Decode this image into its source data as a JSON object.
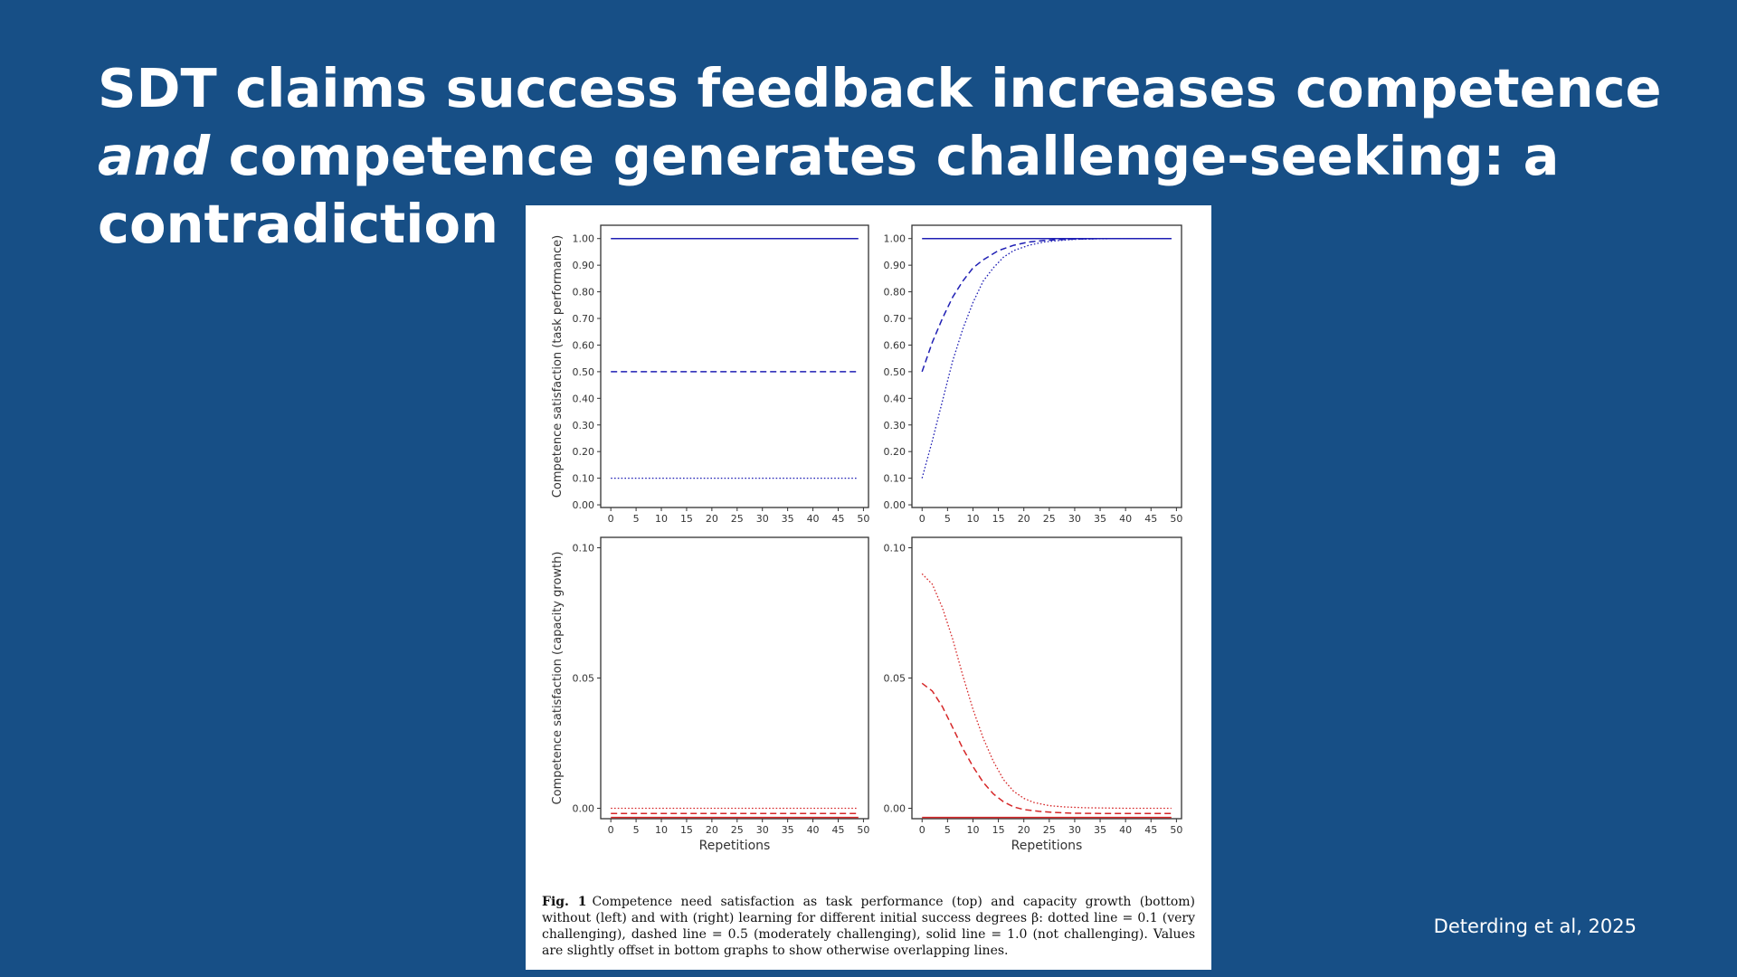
{
  "slide": {
    "title_part1": "SDT claims success feedback increases competence ",
    "title_emph": "and",
    "title_part2": " competence generates challenge-seeking: a contradiction",
    "citation": "Deterding et al, 2025"
  },
  "caption": {
    "label": "Fig. 1",
    "text": "Competence need satisfaction as task performance (top) and capacity growth (bottom) without (left) and with (right) learning for different initial success degrees β: dotted line = 0.1 (very challenging), dashed line = 0.5 (moderately challenging), solid line = 1.0 (not challenging). Values are slightly offset in bottom graphs to show otherwise overlapping lines."
  },
  "colors": {
    "background": "#174f86",
    "blue_series": "#1f1fb4",
    "red_series": "#d62728"
  },
  "chart_data": [
    {
      "type": "line",
      "panel": "top-left",
      "xlabel": "",
      "ylabel": "Competence satisfaction (task performance)",
      "xlim": [
        -2,
        51
      ],
      "ylim": [
        -0.01,
        1.05
      ],
      "xticks": [
        0,
        5,
        10,
        15,
        20,
        25,
        30,
        35,
        40,
        45,
        50
      ],
      "yticks": [
        0.0,
        0.1,
        0.2,
        0.3,
        0.4,
        0.5,
        0.6,
        0.7,
        0.8,
        0.9,
        1.0
      ],
      "ytick_labels": [
        "0.00",
        "0.10",
        "0.20",
        "0.30",
        "0.40",
        "0.50",
        "0.60",
        "0.70",
        "0.80",
        "0.90",
        "1.00"
      ],
      "color": "#1f1fb4",
      "series": [
        {
          "style": "solid",
          "x": [
            0,
            49
          ],
          "y": [
            1.0,
            1.0
          ]
        },
        {
          "style": "dashed",
          "x": [
            0,
            49
          ],
          "y": [
            0.5,
            0.5
          ]
        },
        {
          "style": "dotted",
          "x": [
            0,
            49
          ],
          "y": [
            0.1,
            0.1
          ]
        }
      ]
    },
    {
      "type": "line",
      "panel": "top-right",
      "xlabel": "",
      "ylabel": "",
      "xlim": [
        -2,
        51
      ],
      "ylim": [
        -0.01,
        1.05
      ],
      "xticks": [
        0,
        5,
        10,
        15,
        20,
        25,
        30,
        35,
        40,
        45,
        50
      ],
      "yticks": [
        0.0,
        0.1,
        0.2,
        0.3,
        0.4,
        0.5,
        0.6,
        0.7,
        0.8,
        0.9,
        1.0
      ],
      "ytick_labels": [
        "0.00",
        "0.10",
        "0.20",
        "0.30",
        "0.40",
        "0.50",
        "0.60",
        "0.70",
        "0.80",
        "0.90",
        "1.00"
      ],
      "color": "#1f1fb4",
      "series": [
        {
          "style": "solid",
          "x": [
            0,
            49
          ],
          "y": [
            1.0,
            1.0
          ]
        },
        {
          "style": "dashed",
          "x": [
            0,
            2,
            4,
            6,
            8,
            10,
            12,
            15,
            18,
            21,
            24,
            27,
            30,
            35,
            40,
            49
          ],
          "y": [
            0.5,
            0.61,
            0.7,
            0.78,
            0.84,
            0.89,
            0.92,
            0.955,
            0.975,
            0.987,
            0.993,
            0.996,
            0.998,
            1.0,
            1.0,
            1.0
          ]
        },
        {
          "style": "dotted",
          "x": [
            0,
            2,
            4,
            6,
            8,
            10,
            12,
            14,
            16,
            18,
            21,
            24,
            27,
            30,
            35,
            40,
            49
          ],
          "y": [
            0.1,
            0.24,
            0.39,
            0.54,
            0.66,
            0.76,
            0.84,
            0.89,
            0.93,
            0.955,
            0.975,
            0.987,
            0.993,
            0.997,
            0.999,
            1.0,
            1.0
          ]
        }
      ]
    },
    {
      "type": "line",
      "panel": "bottom-left",
      "xlabel": "Repetitions",
      "ylabel": "Competence satisfaction (capacity growth)",
      "xlim": [
        -2,
        51
      ],
      "ylim": [
        -0.004,
        0.104
      ],
      "xticks": [
        0,
        5,
        10,
        15,
        20,
        25,
        30,
        35,
        40,
        45,
        50
      ],
      "yticks": [
        0.0,
        0.05,
        0.1
      ],
      "ytick_labels": [
        "0.00",
        "0.05",
        "0.10"
      ],
      "color": "#d62728",
      "series": [
        {
          "style": "solid",
          "x": [
            0,
            49
          ],
          "y": [
            -0.0035,
            -0.0035
          ]
        },
        {
          "style": "dashed",
          "x": [
            0,
            49
          ],
          "y": [
            -0.002,
            -0.002
          ]
        },
        {
          "style": "dotted",
          "x": [
            0,
            49
          ],
          "y": [
            0.0,
            0.0
          ]
        }
      ]
    },
    {
      "type": "line",
      "panel": "bottom-right",
      "xlabel": "Repetitions",
      "ylabel": "",
      "xlim": [
        -2,
        51
      ],
      "ylim": [
        -0.004,
        0.104
      ],
      "xticks": [
        0,
        5,
        10,
        15,
        20,
        25,
        30,
        35,
        40,
        45,
        50
      ],
      "yticks": [
        0.0,
        0.05,
        0.1
      ],
      "ytick_labels": [
        "0.00",
        "0.05",
        "0.10"
      ],
      "color": "#d62728",
      "series": [
        {
          "style": "solid",
          "x": [
            0,
            49
          ],
          "y": [
            -0.0035,
            -0.0035
          ]
        },
        {
          "style": "dashed",
          "x": [
            0,
            2,
            4,
            6,
            8,
            10,
            12,
            14,
            16,
            18,
            20,
            23,
            26,
            30,
            35,
            40,
            49
          ],
          "y": [
            0.048,
            0.045,
            0.039,
            0.031,
            0.023,
            0.016,
            0.01,
            0.0055,
            0.0025,
            0.0005,
            -0.0005,
            -0.0012,
            -0.0016,
            -0.0019,
            -0.002,
            -0.002,
            -0.002
          ]
        },
        {
          "style": "dotted",
          "x": [
            0,
            2,
            4,
            6,
            8,
            10,
            12,
            14,
            16,
            18,
            20,
            22,
            25,
            28,
            32,
            36,
            40,
            49
          ],
          "y": [
            0.09,
            0.086,
            0.077,
            0.065,
            0.051,
            0.038,
            0.027,
            0.018,
            0.011,
            0.0065,
            0.0038,
            0.0022,
            0.001,
            0.0005,
            0.0002,
            0.0001,
            0.0,
            0.0
          ]
        }
      ]
    }
  ]
}
